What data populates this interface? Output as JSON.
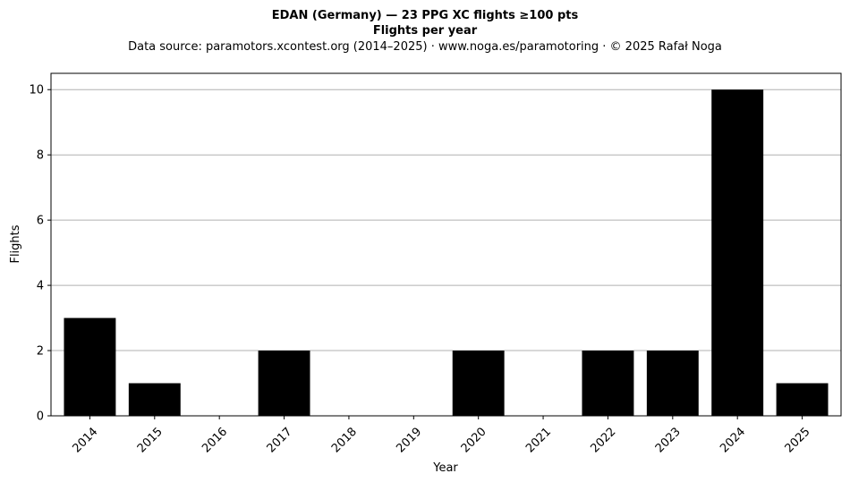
{
  "chart_data": {
    "type": "bar",
    "title": "EDAN (Germany)  —  23 PPG XC flights ≥100 pts",
    "subtitle": "Flights per year",
    "source_note": "Data source: paramotors.xcontest.org (2014–2025)  ·  www.noga.es/paramotoring  ·  © 2025 Rafał Noga",
    "xlabel": "Year",
    "ylabel": "Flights",
    "categories": [
      "2014",
      "2015",
      "2016",
      "2017",
      "2018",
      "2019",
      "2020",
      "2021",
      "2022",
      "2023",
      "2024",
      "2025"
    ],
    "values": [
      3,
      1,
      0,
      2,
      0,
      0,
      2,
      0,
      2,
      2,
      10,
      1
    ],
    "ylim": [
      0,
      10.5
    ],
    "yticks": [
      0,
      2,
      4,
      6,
      8,
      10
    ],
    "grid": "horizontal",
    "bar_color": "#000000",
    "grid_color": "#b0b0b0"
  }
}
